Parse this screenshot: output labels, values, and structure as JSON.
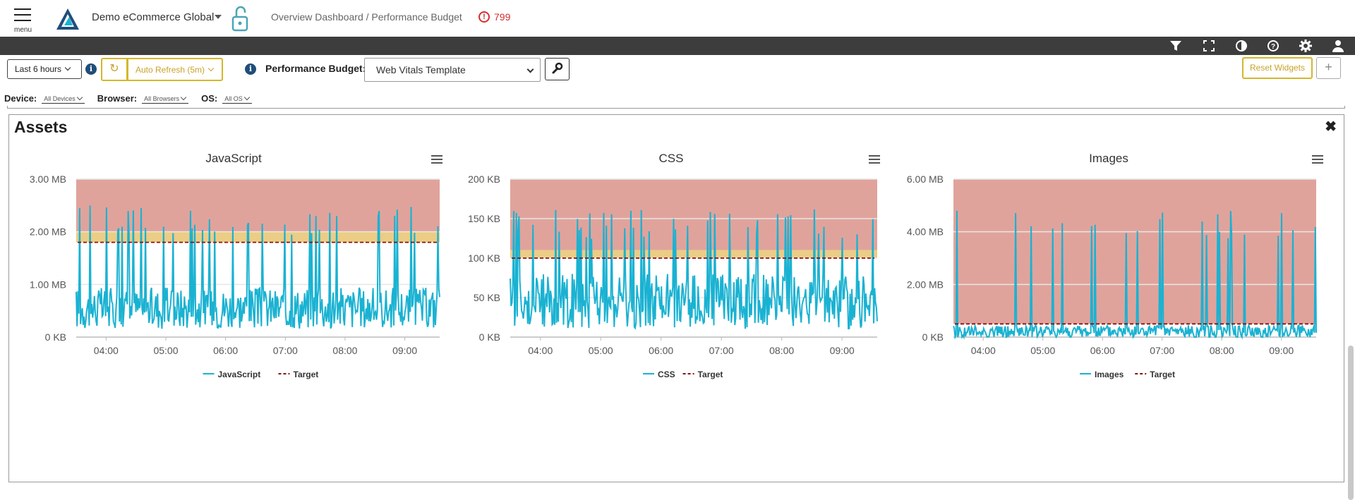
{
  "header": {
    "menu_label": "menu",
    "org_name": "Demo eCommerce Global",
    "breadcrumb": "Overview Dashboard / Performance Budget",
    "alert_count": "799"
  },
  "toolbar_icons": [
    "filter-icon",
    "fullscreen-icon",
    "contrast-icon",
    "help-icon",
    "settings-icon",
    "user-icon"
  ],
  "controls": {
    "time_range": "Last 6 hours",
    "auto_refresh": "Auto Refresh (5m)",
    "performance_budget_label": "Performance Budget:",
    "performance_budget_value": "Web Vitals Template",
    "reset_widgets": "Reset Widgets",
    "add": "+"
  },
  "filters": {
    "device_label": "Device:",
    "device_value": "All Devices",
    "browser_label": "Browser:",
    "browser_value": "All Browsers",
    "os_label": "OS:",
    "os_value": "All OS"
  },
  "widget": {
    "title": "Assets"
  },
  "colors": {
    "series": "#1ab2d2",
    "target": "#8b1010",
    "over_budget": "#e0a39b",
    "warning": "#ebcd85",
    "accent_yellow": "#d4b72c",
    "info_blue": "#1f4e79",
    "alert_red": "#d32f2f"
  },
  "chart_data": [
    {
      "type": "line",
      "title": "JavaScript",
      "y_unit": "MB",
      "ylim": [
        0,
        3
      ],
      "y_ticks": [
        0,
        1,
        2,
        3
      ],
      "y_tick_labels": [
        "0 KB",
        "1.00 MB",
        "2.00 MB",
        "3.00 MB"
      ],
      "x_range": [
        "03:30",
        "09:35"
      ],
      "x_tick_labels": [
        "04:00",
        "05:00",
        "06:00",
        "07:00",
        "08:00",
        "09:00"
      ],
      "target": 1.8,
      "warning_band": [
        1.8,
        2.0
      ],
      "over_band": [
        2.0,
        3.0
      ],
      "series": [
        {
          "name": "JavaScript",
          "baseline": 0.55,
          "spread": 0.4,
          "spike_max": 2.5,
          "spikes": 30
        }
      ],
      "legend": [
        "JavaScript",
        "Target"
      ]
    },
    {
      "type": "line",
      "title": "CSS",
      "y_unit": "KB",
      "ylim": [
        0,
        200
      ],
      "y_ticks": [
        0,
        50,
        100,
        150,
        200
      ],
      "y_tick_labels": [
        "0 KB",
        "50 KB",
        "100 KB",
        "150 KB",
        "200 KB"
      ],
      "x_range": [
        "03:30",
        "09:35"
      ],
      "x_tick_labels": [
        "04:00",
        "05:00",
        "06:00",
        "07:00",
        "08:00",
        "09:00"
      ],
      "target": 100,
      "warning_band": [
        100,
        110
      ],
      "over_band": [
        110,
        200
      ],
      "series": [
        {
          "name": "CSS",
          "baseline": 45,
          "spread": 35,
          "spike_max": 163,
          "spikes": 34
        }
      ],
      "legend": [
        "CSS",
        "Target"
      ]
    },
    {
      "type": "line",
      "title": "Images",
      "y_unit": "MB",
      "ylim": [
        0,
        6
      ],
      "y_ticks": [
        0,
        2,
        4,
        6
      ],
      "y_tick_labels": [
        "0 KB",
        "2.00 MB",
        "4.00 MB",
        "6.00 MB"
      ],
      "x_range": [
        "03:30",
        "09:35"
      ],
      "x_tick_labels": [
        "04:00",
        "05:00",
        "06:00",
        "07:00",
        "08:00",
        "09:00"
      ],
      "target": 0.5,
      "warning_band": [
        0.5,
        0.5
      ],
      "over_band": [
        0.5,
        6.0
      ],
      "series": [
        {
          "name": "Images",
          "baseline": 0.2,
          "spread": 0.25,
          "spike_max": 4.9,
          "spikes": 20
        }
      ],
      "legend": [
        "Images",
        "Target"
      ]
    }
  ]
}
